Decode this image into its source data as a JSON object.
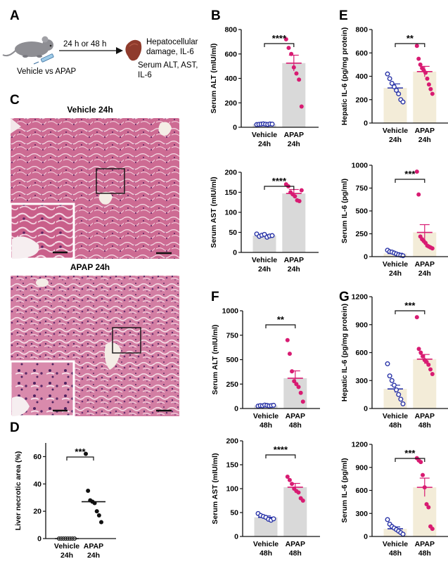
{
  "colors": {
    "vehicle_point": "#2b35a8",
    "apap_point": "#d81b72",
    "bar_gray": "#d9d9d9",
    "bar_cream": "#f3ecd8",
    "tissue_bg": "#cf6e94",
    "axis": "#111111"
  },
  "panels": {
    "A": {
      "label": "A",
      "time_label": "24 h  or  48 h",
      "treatment_label": "Vehicle vs APAP",
      "outcome_line1": "Hepatocellular",
      "outcome_line2": "damage, IL-6",
      "outcome_line3": "Serum ALT, AST,",
      "outcome_line4": "IL-6",
      "mouse_icon": "mouse-icon",
      "syringe_icon": "syringe-icon",
      "liver_icon": "liver-icon"
    },
    "C": {
      "label": "C",
      "top_title": "Vehicle 24h",
      "bottom_title": "APAP 24h"
    }
  },
  "chart_data": [
    {
      "id": "B1",
      "panel_label": "B",
      "type": "bar",
      "ylabel": "Serum ALT (mIU/ml)",
      "ylim": [
        0,
        800
      ],
      "yticks": [
        0,
        200,
        400,
        600,
        800
      ],
      "categories": [
        "Vehicle 24h",
        "APAP 24h"
      ],
      "cat_line1": [
        "Vehicle",
        "APAP"
      ],
      "cat_line2": [
        "24h",
        "24h"
      ],
      "bar_style": "gray",
      "means": [
        25,
        525
      ],
      "sem": [
        3,
        65
      ],
      "points": [
        [
          22,
          24,
          26,
          28,
          25,
          23,
          27,
          26
        ],
        [
          720,
          650,
          600,
          490,
          440,
          390,
          170
        ]
      ],
      "significance": "****"
    },
    {
      "id": "B2",
      "panel_label": "",
      "type": "bar",
      "ylabel": "Serum AST (mIU/ml)",
      "ylim": [
        0,
        200
      ],
      "yticks": [
        0,
        50,
        100,
        150,
        200
      ],
      "categories": [
        "Vehicle 24h",
        "APAP 24h"
      ],
      "cat_line1": [
        "Vehicle",
        "APAP"
      ],
      "cat_line2": [
        "24h",
        "24h"
      ],
      "bar_style": "gray",
      "means": [
        42,
        147
      ],
      "sem": [
        2,
        10
      ],
      "points": [
        [
          46,
          40,
          43,
          45,
          38,
          41,
          42
        ],
        [
          170,
          165,
          150,
          145,
          140,
          130,
          128,
          155
        ]
      ],
      "significance": "****"
    },
    {
      "id": "D",
      "panel_label": "D",
      "type": "scatter",
      "ylabel": "Liver necrotic area (%)",
      "ylim": [
        0,
        70
      ],
      "yticks": [
        0,
        20,
        40,
        60
      ],
      "categories": [
        "Vehicle 24h",
        "APAP 24h"
      ],
      "cat_line1": [
        "Vehicle",
        "APAP"
      ],
      "cat_line2": [
        "24h",
        "24h"
      ],
      "medians": [
        0,
        27
      ],
      "points": [
        [
          0,
          0,
          0,
          0,
          0,
          0,
          0,
          0
        ],
        [
          62,
          35,
          28,
          27,
          26,
          20,
          17,
          12
        ]
      ],
      "significance": "***"
    },
    {
      "id": "E1",
      "panel_label": "E",
      "type": "bar",
      "ylabel": "Hepatic IL-6 (pg/mg protein)",
      "ylim": [
        0,
        800
      ],
      "yticks": [
        0,
        200,
        400,
        600,
        800
      ],
      "categories": [
        "Vehicle 24h",
        "APAP 24h"
      ],
      "cat_line1": [
        "Vehicle",
        "APAP"
      ],
      "cat_line2": [
        "24h",
        "24h"
      ],
      "bar_style": "cream",
      "means": [
        300,
        440
      ],
      "sem": [
        35,
        45
      ],
      "points": [
        [
          420,
          380,
          340,
          310,
          280,
          250,
          200,
          180
        ],
        [
          660,
          550,
          500,
          470,
          450,
          430,
          380,
          330,
          290,
          250
        ]
      ],
      "significance": "**"
    },
    {
      "id": "E2",
      "panel_label": "",
      "type": "bar",
      "ylabel": "Serum IL-6 (pg/ml)",
      "ylim": [
        0,
        1000
      ],
      "yticks": [
        0,
        250,
        500,
        750,
        1000
      ],
      "categories": [
        "Vehicle 24h",
        "APAP 24h"
      ],
      "cat_line1": [
        "Vehicle",
        "APAP"
      ],
      "cat_line2": [
        "24h",
        "24h"
      ],
      "bar_style": "cream",
      "means": [
        35,
        265
      ],
      "sem": [
        8,
        85
      ],
      "points": [
        [
          70,
          55,
          50,
          40,
          30,
          20,
          15,
          10
        ],
        [
          930,
          680,
          220,
          190,
          170,
          150,
          120,
          110,
          100,
          90
        ]
      ],
      "significance": "***"
    },
    {
      "id": "F1",
      "panel_label": "F",
      "type": "bar",
      "ylabel": "Serum ALT (mIU/ml)",
      "ylim": [
        0,
        1000
      ],
      "yticks": [
        0,
        250,
        500,
        750,
        1000
      ],
      "categories": [
        "Vehicle 48h",
        "APAP 48h"
      ],
      "cat_line1": [
        "Vehicle",
        "APAP"
      ],
      "cat_line2": [
        "48h",
        "48h"
      ],
      "bar_style": "gray",
      "means": [
        30,
        310
      ],
      "sem": [
        3,
        75
      ],
      "points": [
        [
          25,
          30,
          28,
          35,
          32,
          27,
          30,
          33
        ],
        [
          700,
          560,
          380,
          280,
          250,
          220,
          160,
          70
        ]
      ],
      "significance": "**"
    },
    {
      "id": "F2",
      "panel_label": "",
      "type": "bar",
      "ylabel": "Serum AST (mIU/ml)",
      "ylim": [
        0,
        200
      ],
      "yticks": [
        0,
        50,
        100,
        150,
        200
      ],
      "categories": [
        "Vehicle 48h",
        "APAP 48h"
      ],
      "cat_line1": [
        "Vehicle",
        "APAP"
      ],
      "cat_line2": [
        "48h",
        "48h"
      ],
      "bar_style": "gray",
      "means": [
        40,
        103
      ],
      "sem": [
        3,
        8
      ],
      "points": [
        [
          48,
          44,
          42,
          40,
          36,
          34,
          37
        ],
        [
          125,
          118,
          110,
          100,
          95,
          92,
          80,
          75
        ]
      ],
      "significance": "****"
    },
    {
      "id": "G1",
      "panel_label": "G",
      "type": "bar",
      "ylabel": "Hepatic IL-6 (pg/mg protein)",
      "ylim": [
        0,
        1200
      ],
      "yticks": [
        0,
        300,
        600,
        900,
        1200
      ],
      "categories": [
        "Vehicle 48h",
        "APAP 48h"
      ],
      "cat_line1": [
        "Vehicle",
        "APAP"
      ],
      "cat_line2": [
        "48h",
        "48h"
      ],
      "bar_style": "cream",
      "means": [
        210,
        530
      ],
      "sem": [
        40,
        50
      ],
      "points": [
        [
          480,
          350,
          300,
          250,
          200,
          150,
          100,
          50
        ],
        [
          980,
          640,
          600,
          560,
          520,
          500,
          470,
          420,
          370
        ]
      ],
      "significance": "***"
    },
    {
      "id": "G2",
      "panel_label": "",
      "type": "bar",
      "ylabel": "Serum IL-6 (pg/ml)",
      "ylim": [
        0,
        1200
      ],
      "yticks": [
        0,
        300,
        600,
        900,
        1200
      ],
      "categories": [
        "Vehicle 48h",
        "APAP 48h"
      ],
      "cat_line1": [
        "Vehicle",
        "APAP"
      ],
      "cat_line2": [
        "48h",
        "48h"
      ],
      "bar_style": "cream",
      "means": [
        100,
        640
      ],
      "sem": [
        25,
        120
      ],
      "points": [
        [
          220,
          160,
          130,
          110,
          90,
          70,
          50,
          30
        ],
        [
          1020,
          990,
          970,
          800,
          640,
          420,
          380,
          130,
          100
        ]
      ],
      "significance": "***"
    }
  ]
}
